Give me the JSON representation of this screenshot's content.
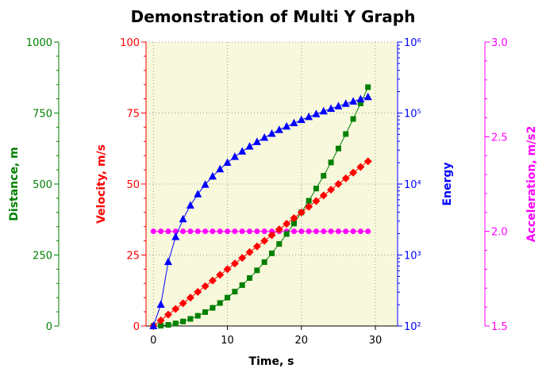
{
  "chart_data": {
    "type": "scatter",
    "title": "Demonstration of Multi Y Graph",
    "xlabel": "Time, s",
    "xlim": [
      -1,
      33
    ],
    "x_ticks": [
      "0",
      "10",
      "20",
      "30"
    ],
    "x_tick_values": [
      0,
      10,
      20,
      30
    ],
    "grid": true,
    "plot_background": "#f8f8dc",
    "x": [
      0,
      1,
      2,
      3,
      4,
      5,
      6,
      7,
      8,
      9,
      10,
      11,
      12,
      13,
      14,
      15,
      16,
      17,
      18,
      19,
      20,
      21,
      22,
      23,
      24,
      25,
      26,
      27,
      28,
      29
    ],
    "series": [
      {
        "name": "Velocity, m/s",
        "axis": "velocity",
        "color": "#ff0000",
        "marker": "diamond",
        "values": [
          0,
          2,
          4,
          6,
          8,
          10,
          12,
          14,
          16,
          18,
          20,
          22,
          24,
          26,
          28,
          30,
          32,
          34,
          36,
          38,
          40,
          42,
          44,
          46,
          48,
          50,
          52,
          54,
          56,
          58
        ]
      },
      {
        "name": "Distance, m",
        "axis": "distance",
        "color": "#008000",
        "marker": "square",
        "values": [
          0,
          1,
          4,
          9,
          16,
          25,
          36,
          49,
          64,
          81,
          100,
          121,
          144,
          169,
          196,
          225,
          256,
          289,
          324,
          361,
          400,
          441,
          484,
          529,
          576,
          625,
          676,
          729,
          784,
          841
        ]
      },
      {
        "name": "Energy",
        "axis": "energy",
        "color": "#0000ff",
        "marker": "triangle",
        "values": [
          100,
          200,
          800,
          1800,
          3200,
          5000,
          7200,
          9800,
          12800,
          16200,
          20000,
          24200,
          28800,
          33800,
          39200,
          45000,
          51200,
          57800,
          64800,
          72200,
          80000,
          88200,
          96800,
          105800,
          115200,
          125000,
          135200,
          145800,
          156800,
          168200
        ]
      },
      {
        "name": "Acceleration, m/s2",
        "axis": "acceleration",
        "color": "#ff00ff",
        "marker": "circle",
        "values": [
          2,
          2,
          2,
          2,
          2,
          2,
          2,
          2,
          2,
          2,
          2,
          2,
          2,
          2,
          2,
          2,
          2,
          2,
          2,
          2,
          2,
          2,
          2,
          2,
          2,
          2,
          2,
          2,
          2,
          2
        ]
      }
    ],
    "y_axes": [
      {
        "key": "distance",
        "label": "Distance, m",
        "color": "#008000",
        "ylim": [
          0,
          1000
        ],
        "scale": "linear",
        "ticks": [
          "0",
          "250",
          "500",
          "750",
          "1000"
        ],
        "tick_values": [
          0,
          250,
          500,
          750,
          1000
        ]
      },
      {
        "key": "velocity",
        "label": "Velocity, m/s",
        "color": "#ff0000",
        "ylim": [
          0,
          100
        ],
        "scale": "linear",
        "ticks": [
          "0",
          "25",
          "50",
          "75",
          "100"
        ],
        "tick_values": [
          0,
          25,
          50,
          75,
          100
        ]
      },
      {
        "key": "energy",
        "label": "Energy",
        "color": "#0000ff",
        "ylim": [
          100,
          1000000
        ],
        "scale": "log",
        "ticks": [
          "10²",
          "10³",
          "10⁴",
          "10⁵",
          "10⁶"
        ],
        "tick_values": [
          100,
          1000,
          10000,
          100000,
          1000000
        ]
      },
      {
        "key": "acceleration",
        "label": "Acceleration, m/s2",
        "color": "#ff00ff",
        "ylim": [
          1.5,
          3.0
        ],
        "scale": "linear",
        "ticks": [
          "1.5",
          "2.0",
          "2.5",
          "3.0"
        ],
        "tick_values": [
          1.5,
          2.0,
          2.5,
          3.0
        ]
      }
    ]
  }
}
